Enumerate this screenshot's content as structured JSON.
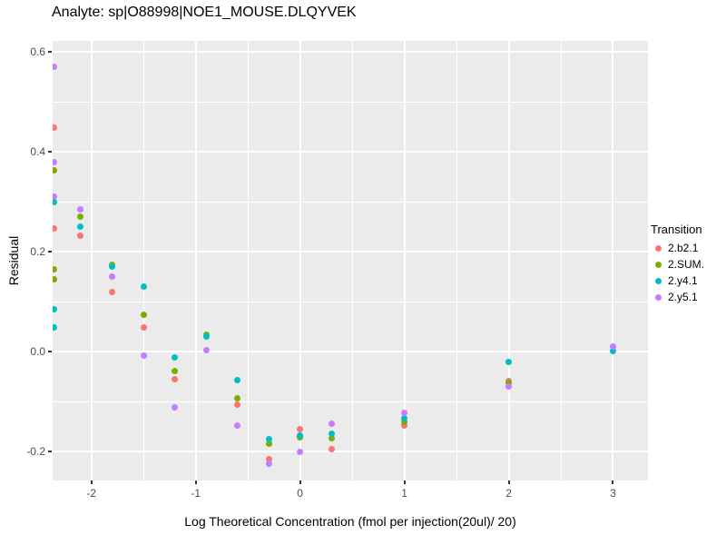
{
  "chart_data": {
    "type": "scatter",
    "title": "Analyte: sp|O88998|NOE1_MOUSE.DLQYVEK",
    "xlabel": "Log Theoretical Concentration (fmol per injection(20ul)/ 20)",
    "ylabel": "Residual",
    "legend_title": "Transition",
    "legend_position": "right",
    "grid": true,
    "panel_bg": "#EBEBEB",
    "grid_color": "#FFFFFF",
    "tick_text_color": "#4D4D4D",
    "tick_mark_color": "#333333",
    "xlim": [
      -2.372,
      3.335
    ],
    "ylim": [
      -0.258,
      0.622
    ],
    "x_axis": {
      "ticks": [
        {
          "value": -2,
          "label": "-2"
        },
        {
          "value": -1,
          "label": "-1"
        },
        {
          "value": 0,
          "label": "0"
        },
        {
          "value": 1,
          "label": "1"
        },
        {
          "value": 2,
          "label": "2"
        },
        {
          "value": 3,
          "label": "3"
        }
      ],
      "minor_ticks": [
        -1.5,
        -0.5,
        0.5,
        1.5,
        2.5
      ]
    },
    "y_axis": {
      "ticks": [
        {
          "value": 0.6,
          "label": "0.6"
        },
        {
          "value": 0.4,
          "label": "0.4"
        },
        {
          "value": 0.2,
          "label": "0.2"
        },
        {
          "value": 0.0,
          "label": "0.0"
        },
        {
          "value": -0.2,
          "label": "-0.2"
        }
      ],
      "minor_ticks": [
        0.5,
        0.3,
        0.1,
        -0.1
      ]
    },
    "series": [
      {
        "name": "2.b2.1",
        "color": "#F8766D",
        "points": [
          [
            -2.36,
            0.448
          ],
          [
            -2.36,
            0.247
          ],
          [
            -2.11,
            0.232
          ],
          [
            -1.8,
            0.12
          ],
          [
            -1.5,
            0.049
          ],
          [
            -1.2,
            -0.055
          ],
          [
            -0.6,
            -0.106
          ],
          [
            -0.3,
            -0.215
          ],
          [
            0.0,
            -0.155
          ],
          [
            0.3,
            -0.195
          ],
          [
            1.0,
            -0.148
          ],
          [
            2.0,
            -0.058
          ]
        ]
      },
      {
        "name": "2.SUM.",
        "color": "#7CAE00",
        "points": [
          [
            -2.36,
            0.363
          ],
          [
            -2.36,
            0.164
          ],
          [
            -2.36,
            0.144
          ],
          [
            -2.11,
            0.27
          ],
          [
            -1.8,
            0.173
          ],
          [
            -1.5,
            0.073
          ],
          [
            -1.2,
            -0.038
          ],
          [
            -0.9,
            0.033
          ],
          [
            -0.6,
            -0.094
          ],
          [
            -0.3,
            -0.184
          ],
          [
            0.0,
            -0.172
          ],
          [
            0.3,
            -0.173
          ],
          [
            1.0,
            -0.14
          ],
          [
            2.0,
            -0.063
          ]
        ]
      },
      {
        "name": "2.y4.1",
        "color": "#00BFC4",
        "points": [
          [
            -2.36,
            0.299
          ],
          [
            -2.36,
            0.084
          ],
          [
            -2.36,
            0.049
          ],
          [
            -2.11,
            0.251
          ],
          [
            -1.8,
            0.171
          ],
          [
            -1.5,
            0.131
          ],
          [
            -1.2,
            -0.011
          ],
          [
            -0.9,
            0.03
          ],
          [
            -0.6,
            -0.057
          ],
          [
            -0.3,
            -0.175
          ],
          [
            0.0,
            -0.168
          ],
          [
            0.3,
            -0.165
          ],
          [
            1.0,
            -0.134
          ],
          [
            2.0,
            -0.021
          ],
          [
            3.0,
            0.001
          ]
        ]
      },
      {
        "name": "2.y5.1",
        "color": "#C77CFF",
        "points": [
          [
            -2.36,
            0.57
          ],
          [
            -2.36,
            0.379
          ],
          [
            -2.36,
            0.311
          ],
          [
            -2.11,
            0.284
          ],
          [
            -1.8,
            0.151
          ],
          [
            -1.5,
            -0.008
          ],
          [
            -1.2,
            -0.112
          ],
          [
            -0.9,
            0.003
          ],
          [
            -0.6,
            -0.148
          ],
          [
            -0.3,
            -0.224
          ],
          [
            0.0,
            -0.201
          ],
          [
            0.3,
            -0.145
          ],
          [
            1.0,
            -0.122
          ],
          [
            2.0,
            -0.07
          ],
          [
            3.0,
            0.01
          ]
        ]
      }
    ]
  }
}
